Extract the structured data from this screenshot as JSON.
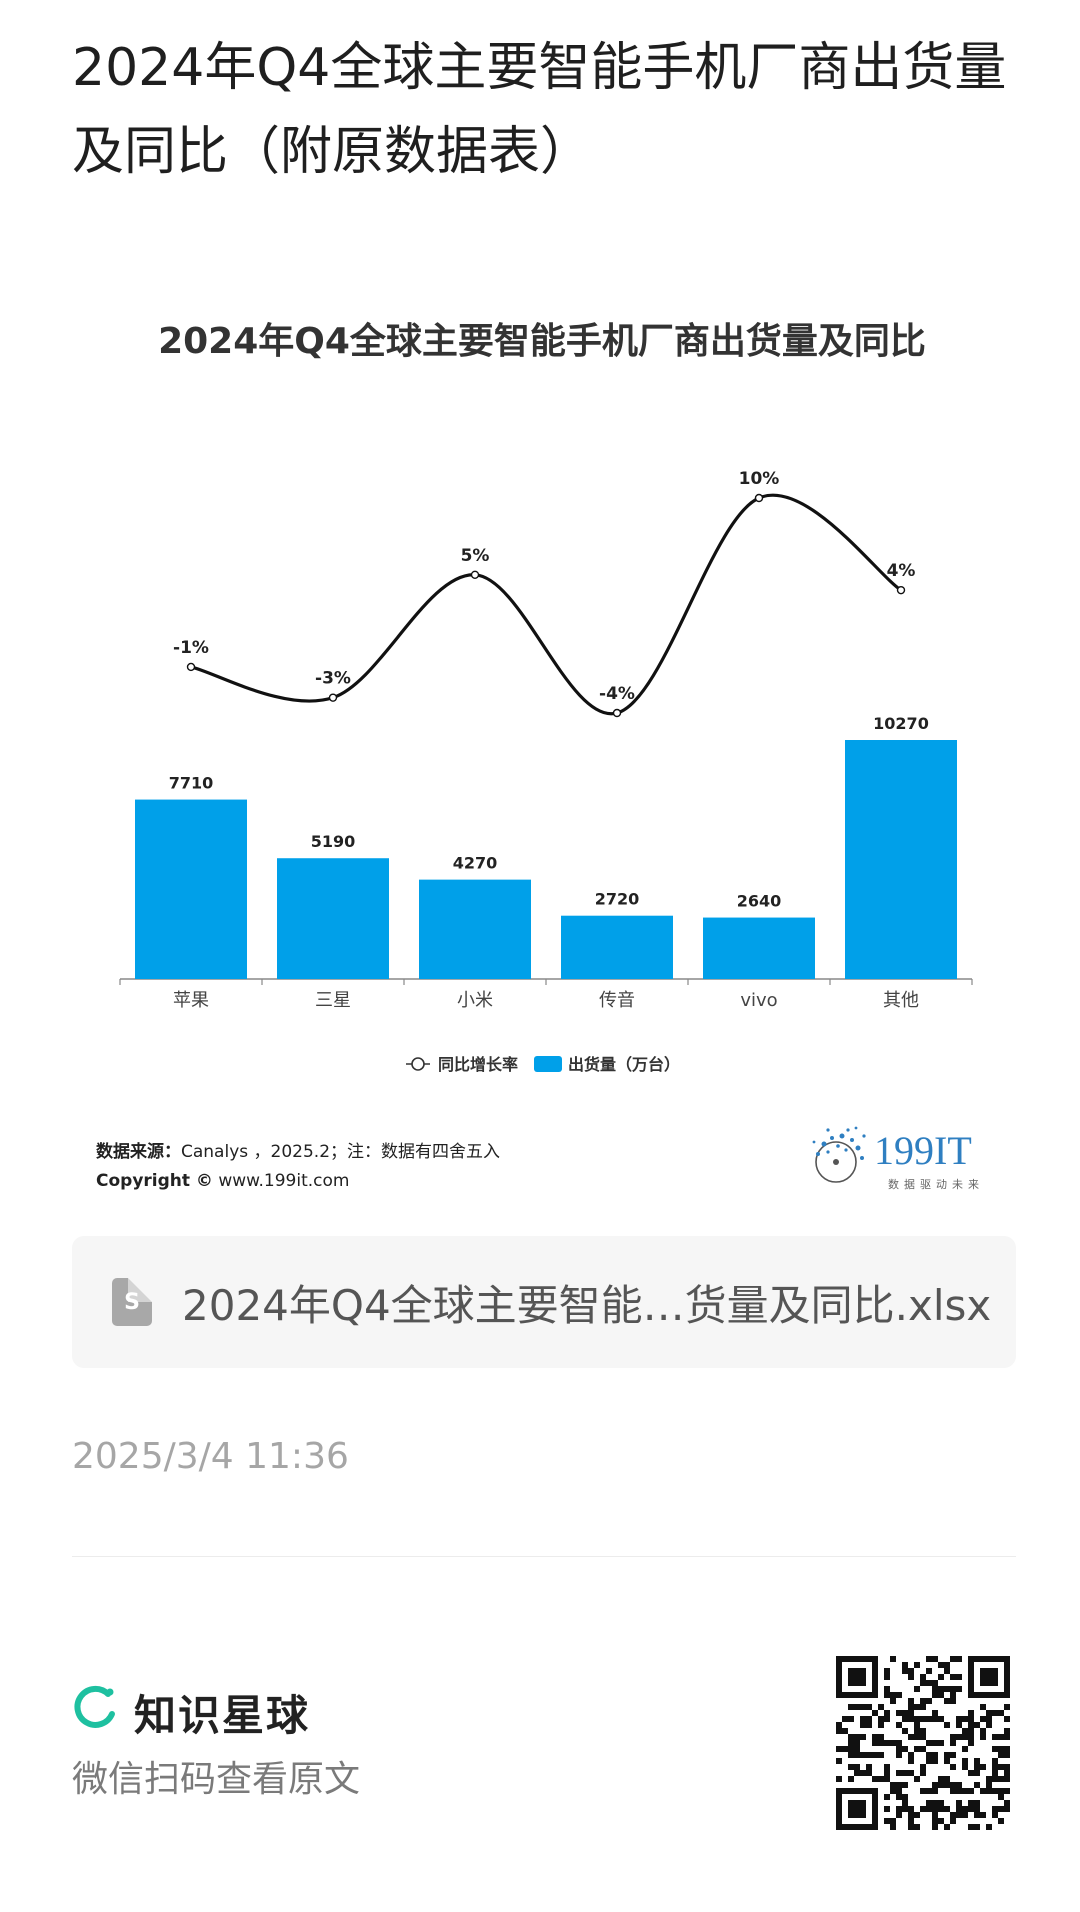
{
  "page": {
    "title": "2024年Q4全球主要智能手机厂商出货量及同比（附原数据表）"
  },
  "chart_data": {
    "type": "bar",
    "title": "2024年Q4全球主要智能手机厂商出货量及同比",
    "categories": [
      "苹果",
      "三星",
      "小米",
      "传音",
      "vivo",
      "其他"
    ],
    "series": [
      {
        "name": "出货量（万台）",
        "type": "bar",
        "values": [
          7710,
          5190,
          4270,
          2720,
          2640,
          10270
        ],
        "labels": [
          "7710",
          "5190",
          "4270",
          "2720",
          "2640",
          "10270"
        ]
      },
      {
        "name": "同比增长率",
        "type": "line",
        "values": [
          -1,
          -3,
          5,
          -4,
          10,
          4
        ],
        "labels": [
          "-1%",
          "-3%",
          "5%",
          "-4%",
          "10%",
          "4%"
        ]
      }
    ],
    "legend_position": "bottom",
    "grid": false,
    "colors": {
      "bar": "#00a0e9",
      "line": "#111111"
    }
  },
  "source": {
    "label": "数据来源：",
    "text": "Canalys ，2025.2；注：数据有四舍五入",
    "copyright_label": "Copyright ©",
    "copyright_url": "www.199it.com"
  },
  "logo": {
    "text": "199IT",
    "tagline": "数据驱动未来",
    "color": "#2f7fc1"
  },
  "file": {
    "icon": "spreadsheet-icon",
    "icon_letter": "S",
    "name": "2024年Q4全球主要智能…货量及同比.xlsx"
  },
  "timestamp": "2025/3/4 11:36",
  "footer": {
    "brand_name": "知识星球",
    "brand_color": "#1ec0a0",
    "scan_hint": "微信扫码查看原文"
  }
}
